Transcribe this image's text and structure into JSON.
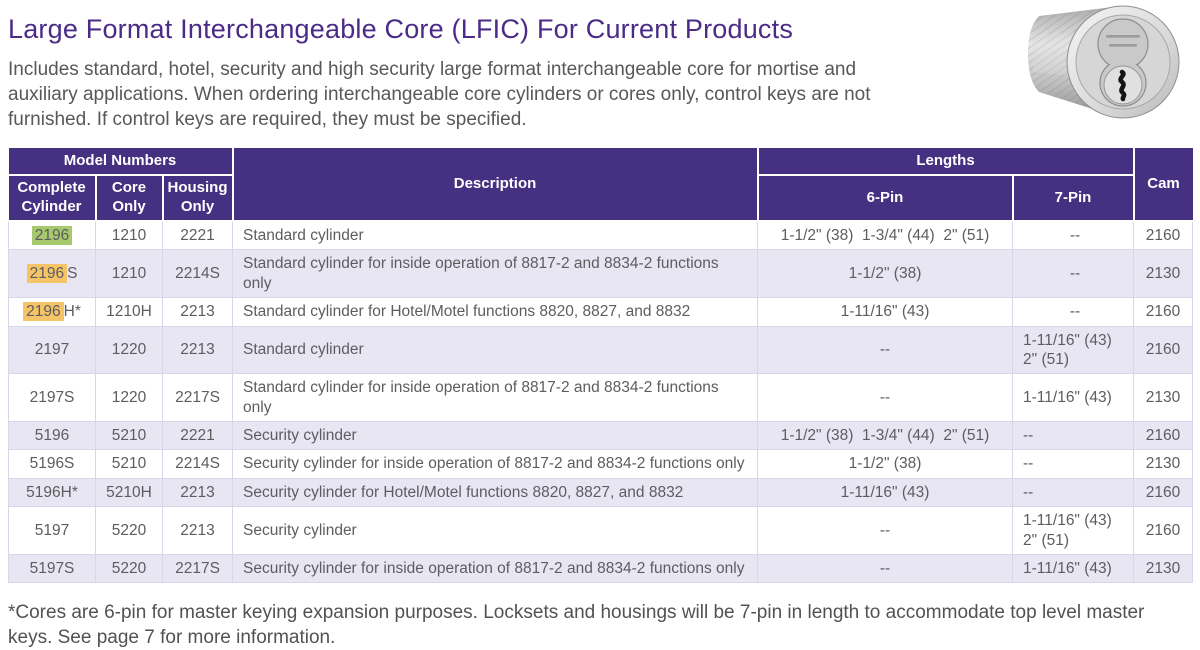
{
  "page": {
    "title": "Large Format Interchangeable Core (LFIC) For Current Products",
    "intro": "Includes standard, hotel, security and high security large format interchangeable core for mortise and auxiliary applications. When ordering interchangeable core cylinders or cores only, control keys are not furnished. If control keys are required, they must be specified.",
    "footnote": "*Cores are 6-pin for master keying expansion purposes. Locksets and housings will be 7-pin in length to accommodate top level master keys. See page 7 for more information.",
    "product_image": "lfic-mortise-cylinder-photo"
  },
  "colors": {
    "header_purple": "#453082",
    "title_purple": "#4b2b87",
    "row_alt": "#e8e6f3",
    "cell_border": "#d9d6ea",
    "highlight_green": "#a6c96d",
    "highlight_orange": "#f5c466"
  },
  "table": {
    "group_headers": {
      "model_numbers": "Model Numbers",
      "description": "Description",
      "lengths": "Lengths",
      "cam": "Cam"
    },
    "sub_headers": {
      "complete_cylinder": "Complete Cylinder",
      "core_only": "Core Only",
      "housing_only": "Housing Only",
      "pin6": "6-Pin",
      "pin7": "7-Pin"
    },
    "rows": [
      {
        "model_hl": "2196",
        "hl_color": "green",
        "model_rest": "",
        "core_only": "1210",
        "housing_only": "2221",
        "description": "Standard cylinder",
        "pin6": "1-1/2\" (38)  1-3/4\" (44)  2\" (51)",
        "pin7": [
          "--"
        ],
        "pin7_align": "center",
        "cam": "2160"
      },
      {
        "model_hl": "2196",
        "hl_color": "orange",
        "model_rest": "S",
        "core_only": "1210",
        "housing_only": "2214S",
        "description": "Standard cylinder for inside operation of 8817-2 and 8834-2 functions only",
        "pin6": "1-1/2\" (38)",
        "pin7": [
          "--"
        ],
        "pin7_align": "center",
        "cam": "2130"
      },
      {
        "model_hl": "2196",
        "hl_color": "orange",
        "model_rest": "H*",
        "core_only": "1210H",
        "housing_only": "2213",
        "description": "Standard cylinder for Hotel/Motel functions 8820, 8827, and 8832",
        "pin6": "1-11/16\" (43)",
        "pin7": [
          "--"
        ],
        "pin7_align": "center",
        "cam": "2160"
      },
      {
        "model_hl": "",
        "hl_color": "",
        "model_rest": "2197",
        "core_only": "1220",
        "housing_only": "2213",
        "description": "Standard cylinder",
        "pin6": "--",
        "pin7": [
          "1-11/16\" (43)",
          "2\" (51)"
        ],
        "pin7_align": "left",
        "cam": "2160"
      },
      {
        "model_hl": "",
        "hl_color": "",
        "model_rest": "2197S",
        "core_only": "1220",
        "housing_only": "2217S",
        "description": "Standard cylinder for inside operation of 8817-2 and 8834-2 functions only",
        "pin6": "--",
        "pin7": [
          "1-11/16\" (43)"
        ],
        "pin7_align": "left",
        "cam": "2130"
      },
      {
        "model_hl": "",
        "hl_color": "",
        "model_rest": "5196",
        "core_only": "5210",
        "housing_only": "2221",
        "description": "Security cylinder",
        "pin6": "1-1/2\" (38)  1-3/4\" (44)  2\" (51)",
        "pin7": [
          "--"
        ],
        "pin7_align": "left",
        "cam": "2160"
      },
      {
        "model_hl": "",
        "hl_color": "",
        "model_rest": "5196S",
        "core_only": "5210",
        "housing_only": "2214S",
        "description": "Security cylinder for inside operation of 8817-2 and 8834-2 functions only",
        "pin6": "1-1/2\" (38)",
        "pin7": [
          "--"
        ],
        "pin7_align": "left",
        "cam": "2130"
      },
      {
        "model_hl": "",
        "hl_color": "",
        "model_rest": "5196H*",
        "core_only": "5210H",
        "housing_only": "2213",
        "description": "Security cylinder for Hotel/Motel functions 8820, 8827, and 8832",
        "pin6": "1-11/16\" (43)",
        "pin7": [
          "--"
        ],
        "pin7_align": "left",
        "cam": "2160"
      },
      {
        "model_hl": "",
        "hl_color": "",
        "model_rest": "5197",
        "core_only": "5220",
        "housing_only": "2213",
        "description": "Security cylinder",
        "pin6": "--",
        "pin7": [
          "1-11/16\" (43)",
          "2\" (51)"
        ],
        "pin7_align": "left",
        "cam": "2160"
      },
      {
        "model_hl": "",
        "hl_color": "",
        "model_rest": "5197S",
        "core_only": "5220",
        "housing_only": "2217S",
        "description": "Security cylinder for inside operation of 8817-2 and 8834-2 functions only",
        "pin6": "--",
        "pin7": [
          "1-11/16\" (43)"
        ],
        "pin7_align": "left",
        "cam": "2130"
      }
    ]
  }
}
